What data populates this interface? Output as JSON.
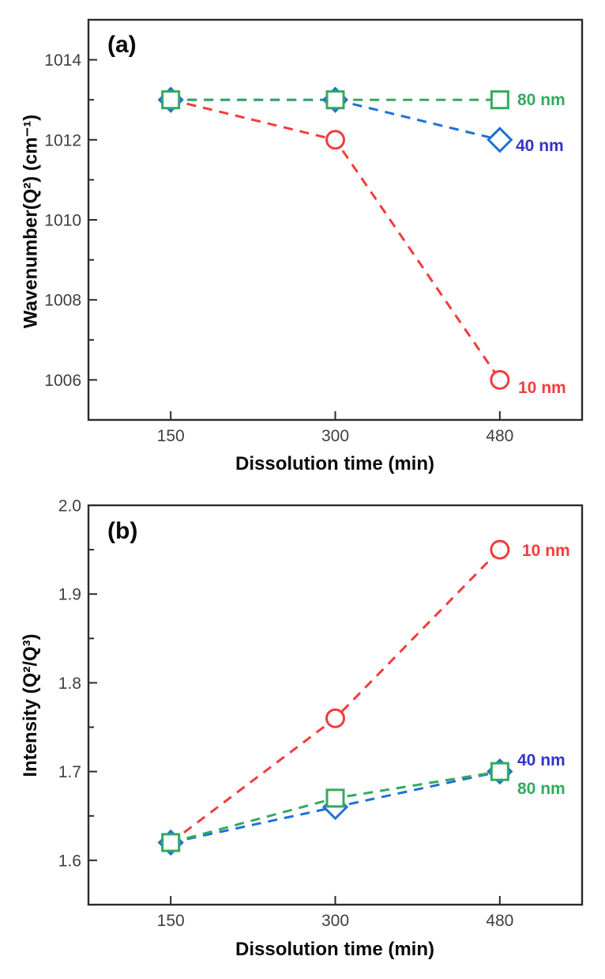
{
  "figure": {
    "background": "#ffffff",
    "colors": {
      "red": "#f23c3c",
      "green": "#35a95f",
      "blue": "#2070d6",
      "blue_label": "#3333cc",
      "axis": "#2b2b2b",
      "tick_label": "#3f3f3f"
    }
  },
  "chart_data": [
    {
      "panel": "(a)",
      "type": "line",
      "xlabel": "Dissolution time (min)",
      "ylabel": "Wavenumber(Q²) (cm⁻¹)",
      "x_categories": [
        "150",
        "300",
        "480"
      ],
      "x_values": [
        150,
        300,
        480
      ],
      "ylim": [
        1005,
        1015
      ],
      "grid": false,
      "line_style": "dashed",
      "legend_position": "labels-at-last-point",
      "yticks": [
        {
          "value": 1006,
          "label": "1006"
        },
        {
          "value": 1008,
          "label": "1008"
        },
        {
          "value": 1010,
          "label": "1010"
        },
        {
          "value": 1012,
          "label": "1012"
        },
        {
          "value": 1014,
          "label": "1014"
        }
      ],
      "yminor": [
        1007,
        1009,
        1011,
        1013
      ],
      "series": [
        {
          "name": "10 nm",
          "marker": "circle",
          "color": "#f23c3c",
          "label_color": "#f23c3c",
          "values": [
            1013,
            1012,
            1006
          ]
        },
        {
          "name": "40 nm",
          "marker": "diamond",
          "color": "#2070d6",
          "label_color": "#3333cc",
          "values": [
            1013,
            1013,
            1012
          ]
        },
        {
          "name": "80 nm",
          "marker": "square",
          "color": "#35a95f",
          "label_color": "#35a95f",
          "values": [
            1013,
            1013,
            1013
          ]
        }
      ]
    },
    {
      "panel": "(b)",
      "type": "line",
      "xlabel": "Dissolution time (min)",
      "ylabel": "Intensity (Q²/Q³)",
      "x_categories": [
        "150",
        "300",
        "480"
      ],
      "x_values": [
        150,
        300,
        480
      ],
      "ylim": [
        1.55,
        2.0
      ],
      "grid": false,
      "line_style": "dashed",
      "legend_position": "labels-at-last-point",
      "yticks": [
        {
          "value": 1.6,
          "label": "1.6"
        },
        {
          "value": 1.7,
          "label": "1.7"
        },
        {
          "value": 1.8,
          "label": "1.8"
        },
        {
          "value": 1.9,
          "label": "1.9"
        },
        {
          "value": 2.0,
          "label": "2.0"
        }
      ],
      "yminor": [
        1.65,
        1.75,
        1.85,
        1.95
      ],
      "series": [
        {
          "name": "10 nm",
          "marker": "circle",
          "color": "#f23c3c",
          "label_color": "#f23c3c",
          "values": [
            1.62,
            1.76,
            1.95
          ]
        },
        {
          "name": "40 nm",
          "marker": "diamond",
          "color": "#2070d6",
          "label_color": "#3333cc",
          "values": [
            1.62,
            1.66,
            1.7
          ]
        },
        {
          "name": "80 nm",
          "marker": "square",
          "color": "#35a95f",
          "label_color": "#35a95f",
          "values": [
            1.62,
            1.67,
            1.7
          ]
        }
      ]
    }
  ]
}
